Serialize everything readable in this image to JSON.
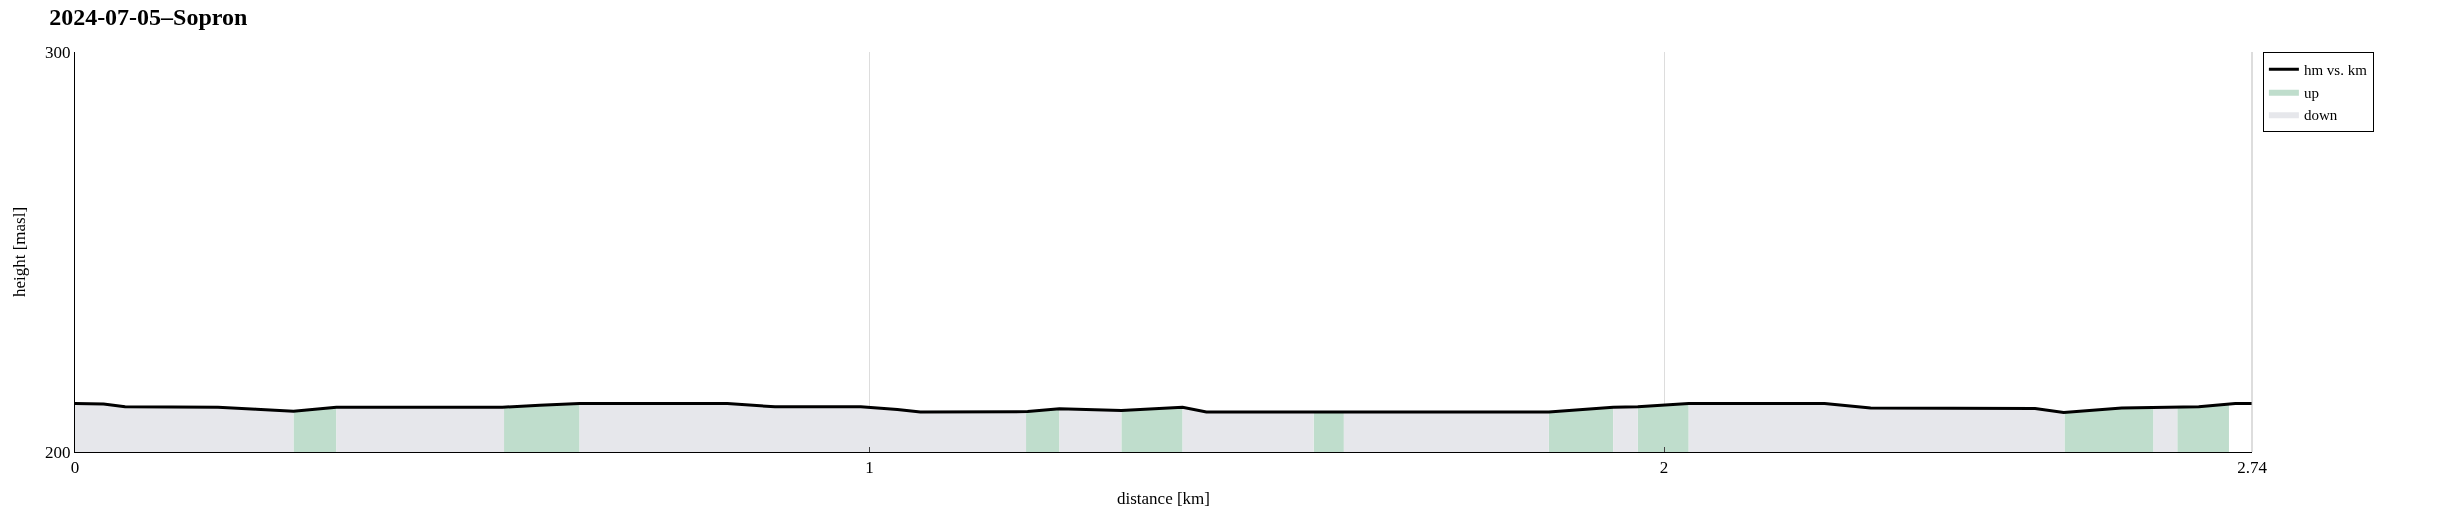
{
  "chart_data": {
    "type": "line",
    "title": "2024-07-05–Sopron",
    "xlabel": "distance [km]",
    "ylabel": "height [masl]",
    "xlim": [
      0,
      2.74
    ],
    "xticks": [
      0,
      1,
      2,
      2.74
    ],
    "ylim": [
      200,
      300
    ],
    "yticks": [
      200,
      300
    ],
    "grid": true,
    "legend": "top right",
    "series": [
      {
        "name": "hm vs. km",
        "color": "#000000",
        "x": [
          0,
          0.036,
          0.063,
          0.18,
          0.228,
          0.275,
          0.329,
          0.538,
          0.585,
          0.635,
          0.821,
          0.881,
          0.989,
          1.035,
          1.064,
          1.199,
          1.239,
          1.317,
          1.394,
          1.424,
          1.855,
          1.936,
          1.967,
          2.031,
          2.202,
          2.26,
          2.467,
          2.503,
          2.576,
          2.673,
          2.719,
          2.74
        ],
        "values": [
          212.1,
          212,
          211.3,
          211.2,
          210.7,
          210.2,
          211.2,
          211.2,
          211.7,
          212.1,
          212.1,
          211.3,
          211.3,
          210.6,
          210,
          210.1,
          210.8,
          210.4,
          211.2,
          210,
          210,
          211.2,
          211.3,
          212.1,
          212.1,
          211,
          210.9,
          209.9,
          211,
          211.3,
          212.1,
          212.1
        ]
      },
      {
        "name": "up",
        "type": "area",
        "color": "#bfddcc",
        "x": [
          0.275,
          0.329,
          0.33,
          0.54,
          0.585,
          0.635,
          0.64,
          1.197,
          1.239,
          1.24,
          1.317,
          1.394,
          1.4,
          1.559,
          1.597,
          1.6,
          1.855,
          1.936,
          1.94,
          1.967,
          2.031,
          2.04,
          2.504,
          2.576,
          2.616,
          2.62,
          2.646,
          2.673,
          2.711
        ],
        "values": [
          210.2,
          211.2,
          null,
          211.2,
          211.7,
          212.1,
          null,
          210.1,
          210.8,
          null,
          210.4,
          211.2,
          null,
          210,
          210,
          null,
          210,
          211.2,
          null,
          211.3,
          212.1,
          null,
          209.9,
          211,
          211.1,
          null,
          211.2,
          211.3,
          211.9
        ]
      },
      {
        "name": "down",
        "type": "area",
        "color": "#e6e7eb",
        "x": [
          0,
          0.036,
          0.063,
          0.18,
          0.228,
          0.275,
          0.28,
          0.329,
          0.538,
          0.54,
          0.545,
          0.635,
          0.821,
          0.881,
          0.989,
          1.035,
          1.064,
          1.197,
          1.2,
          1.239,
          1.317,
          1.32,
          1.394,
          1.424,
          1.559,
          1.56,
          1.597,
          1.855,
          1.86,
          1.936,
          1.967,
          1.97,
          2.031,
          2.202,
          2.26,
          2.467,
          2.504,
          2.51,
          2.616,
          2.646
        ],
        "values": [
          212.1,
          212,
          211.3,
          211.2,
          210.7,
          210.2,
          null,
          211.2,
          211.2,
          211.2,
          null,
          212.1,
          212.1,
          211.3,
          211.3,
          210.6,
          210,
          210.1,
          null,
          210.8,
          210.4,
          null,
          211.2,
          210,
          210,
          null,
          210,
          210,
          null,
          211.2,
          211.3,
          null,
          212.1,
          212.1,
          211,
          210.9,
          209.9,
          null,
          211.1,
          211.2
        ]
      }
    ]
  }
}
